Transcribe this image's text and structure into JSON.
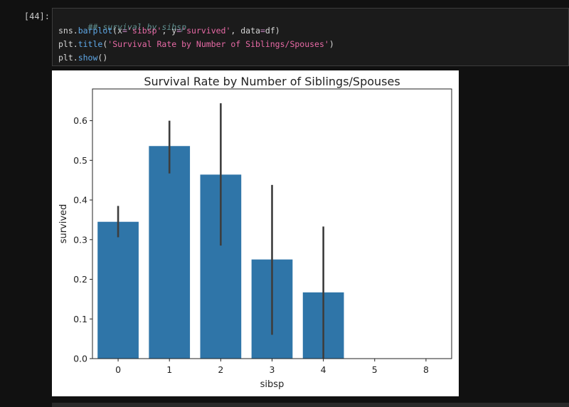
{
  "cell": {
    "prompt": "[44]:",
    "code": {
      "comment": "## survival by sibsp",
      "line2": {
        "obj": "sns.",
        "fn": "barplot",
        "p1": "(x",
        "eq1": "=",
        "s1": "'sibsp'",
        "p2": ", y",
        "eq2": "=",
        "s2": "'survived'",
        "p3": ", data",
        "eq3": "=",
        "p4": "df)"
      },
      "line3": {
        "obj": "plt.",
        "fn": "title",
        "p1": "(",
        "s1": "'Survival Rate by Number of Siblings/Spouses'",
        "p2": ")"
      },
      "line4": {
        "obj": "plt.",
        "fn": "show",
        "p1": "()"
      }
    }
  },
  "colors": {
    "bar": "#2f75a8",
    "errorbar": "#3d3d3d"
  },
  "chart_data": {
    "type": "bar",
    "title": "Survival Rate by Number of Siblings/Spouses",
    "xlabel": "sibsp",
    "ylabel": "survived",
    "categories": [
      "0",
      "1",
      "2",
      "3",
      "4",
      "5",
      "8"
    ],
    "values": [
      0.345,
      0.536,
      0.464,
      0.25,
      0.167,
      0.0,
      0.0
    ],
    "ci_low": [
      0.306,
      0.467,
      0.285,
      0.06,
      0.0,
      0.0,
      0.0
    ],
    "ci_high": [
      0.385,
      0.6,
      0.644,
      0.438,
      0.333,
      0.0,
      0.0
    ],
    "ylim": [
      0,
      0.68
    ],
    "yticks": [
      "0.0",
      "0.1",
      "0.2",
      "0.3",
      "0.4",
      "0.5",
      "0.6"
    ],
    "grid": false
  }
}
